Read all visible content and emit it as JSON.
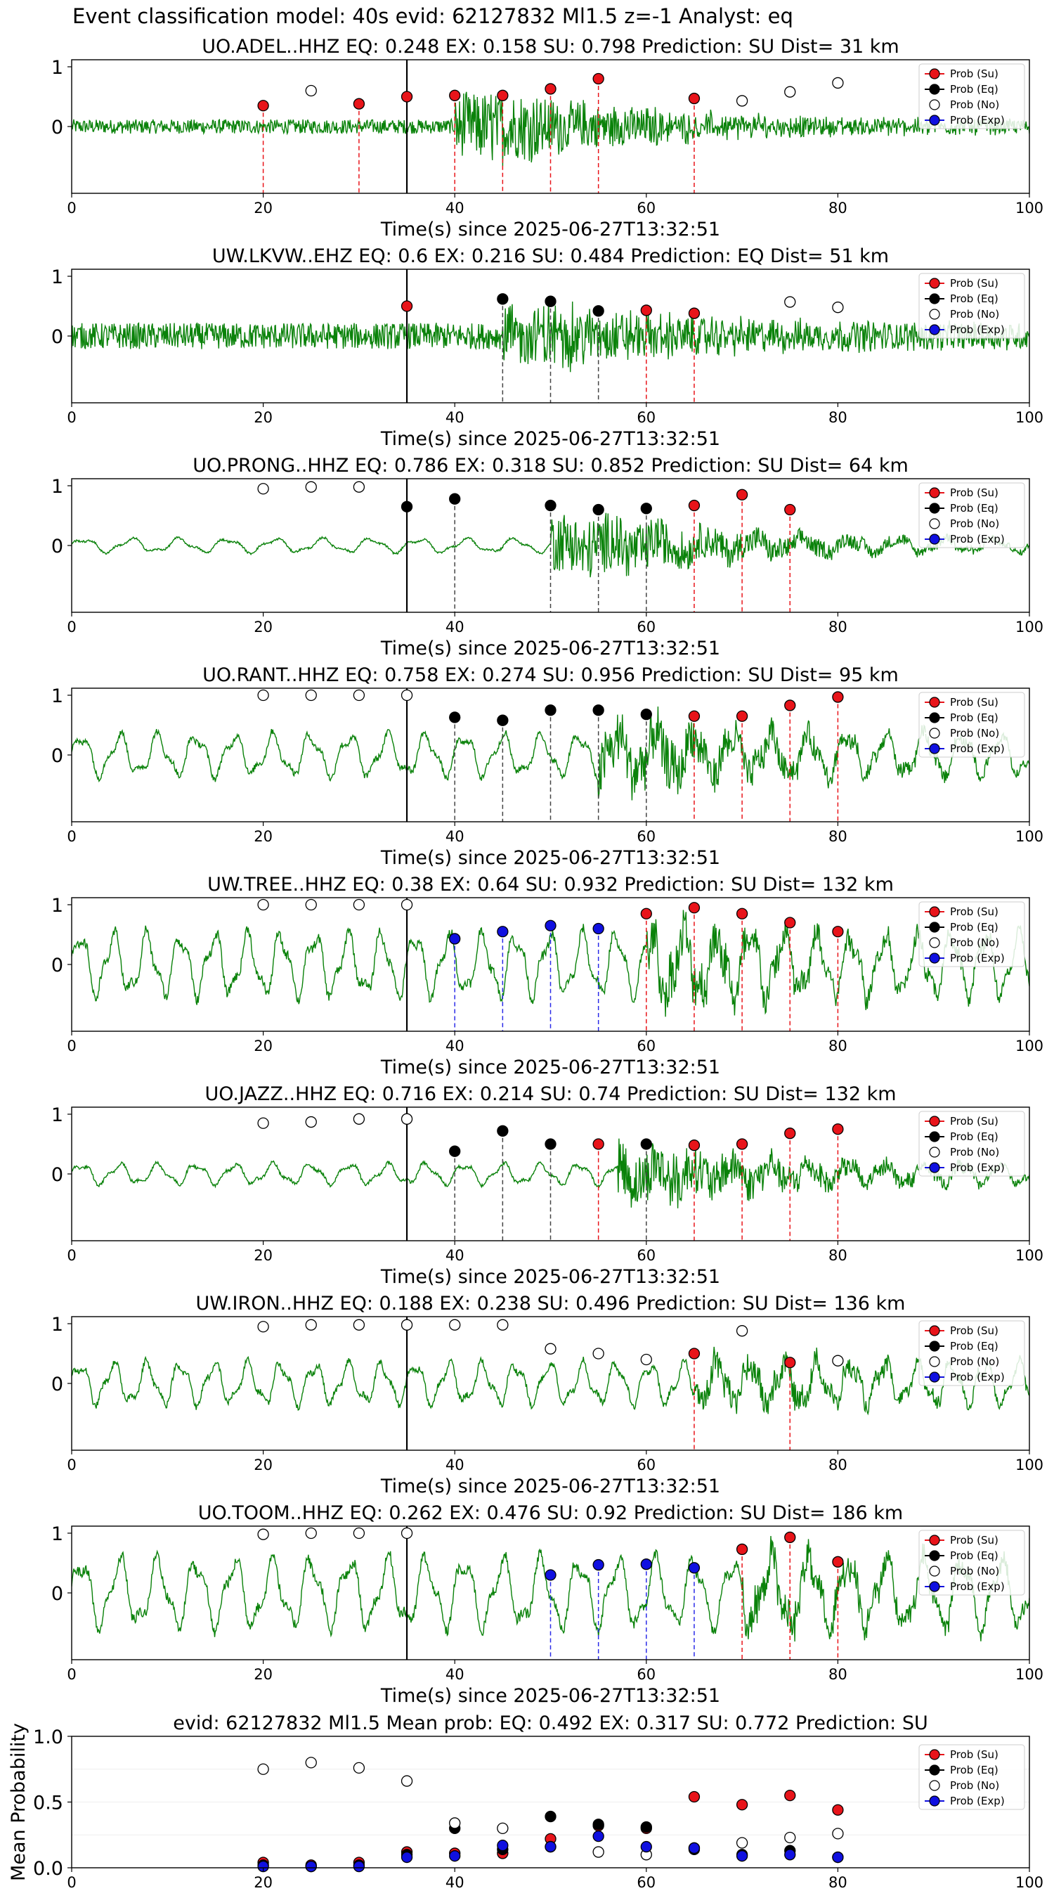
{
  "suptitle": "Event classification model: 40s evid: 62127832 Ml1.5 z=-1 Analyst: eq",
  "legend": [
    "Prob (Su)",
    "Prob (Eq)",
    "Prob (No)",
    "Prob (Exp)"
  ],
  "colors": {
    "su": "#e8141a",
    "eq": "#000000",
    "no": "#ffffff",
    "exp": "#1010e0",
    "trace": "#0a820a",
    "su_line": "#e8141a",
    "eq_line": "#444444",
    "exp_line": "#2a2ae8"
  },
  "chart_data": [
    {
      "type": "line",
      "title": "UO.ADEL..HHZ   EQ: 0.248  EX: 0.158  SU: 0.798   Prediction: SU    Dist= 31 km",
      "xlabel": "Time(s) since 2025-06-27T13:32:51",
      "xlim": [
        0,
        100
      ],
      "xticks": [
        0,
        20,
        40,
        60,
        80,
        100
      ],
      "yticks": [
        "0",
        "1"
      ],
      "trace": {
        "style": "noise",
        "amp": 0.12,
        "period": 0,
        "event_start": 40,
        "event_amp": 0.55
      },
      "points": [
        {
          "x": 20,
          "y": 0.35,
          "c": "su"
        },
        {
          "x": 25,
          "y": 0.6,
          "c": "no"
        },
        {
          "x": 30,
          "y": 0.38,
          "c": "su"
        },
        {
          "x": 35,
          "y": 0.5,
          "c": "su"
        },
        {
          "x": 40,
          "y": 0.52,
          "c": "su"
        },
        {
          "x": 45,
          "y": 0.52,
          "c": "su"
        },
        {
          "x": 50,
          "y": 0.63,
          "c": "su"
        },
        {
          "x": 55,
          "y": 0.8,
          "c": "su"
        },
        {
          "x": 65,
          "y": 0.47,
          "c": "su"
        },
        {
          "x": 70,
          "y": 0.43,
          "c": "no"
        },
        {
          "x": 75,
          "y": 0.58,
          "c": "no"
        },
        {
          "x": 80,
          "y": 0.73,
          "c": "no"
        }
      ]
    },
    {
      "type": "line",
      "title": "UW.LKVW..EHZ   EQ: 0.6  EX: 0.216  SU: 0.484   Prediction: EQ    Dist= 51 km",
      "xlabel": "Time(s) since 2025-06-27T13:32:51",
      "xlim": [
        0,
        100
      ],
      "xticks": [
        0,
        20,
        40,
        60,
        80,
        100
      ],
      "yticks": [
        "0",
        "1"
      ],
      "trace": {
        "style": "noise",
        "amp": 0.22,
        "period": 0,
        "event_start": 45,
        "event_amp": 0.45
      },
      "points": [
        {
          "x": 35,
          "y": 0.5,
          "c": "su"
        },
        {
          "x": 45,
          "y": 0.62,
          "c": "eq"
        },
        {
          "x": 50,
          "y": 0.58,
          "c": "eq"
        },
        {
          "x": 55,
          "y": 0.42,
          "c": "eq"
        },
        {
          "x": 60,
          "y": 0.43,
          "c": "su"
        },
        {
          "x": 65,
          "y": 0.38,
          "c": "su"
        },
        {
          "x": 75,
          "y": 0.57,
          "c": "no"
        },
        {
          "x": 80,
          "y": 0.48,
          "c": "no"
        }
      ]
    },
    {
      "type": "line",
      "title": "UO.PRONG..HHZ   EQ: 0.786  EX: 0.318  SU: 0.852   Prediction: SU    Dist= 64 km",
      "xlabel": "Time(s) since 2025-06-27T13:32:51",
      "xlim": [
        0,
        100
      ],
      "xticks": [
        0,
        20,
        40,
        60,
        80,
        100
      ],
      "yticks": [
        "0",
        "1"
      ],
      "trace": {
        "style": "wave",
        "amp": 0.1,
        "period": 5,
        "event_start": 50,
        "event_amp": 0.5
      },
      "points": [
        {
          "x": 20,
          "y": 0.95,
          "c": "no"
        },
        {
          "x": 25,
          "y": 0.98,
          "c": "no"
        },
        {
          "x": 30,
          "y": 0.98,
          "c": "no"
        },
        {
          "x": 35,
          "y": 0.65,
          "c": "eq"
        },
        {
          "x": 40,
          "y": 0.78,
          "c": "eq"
        },
        {
          "x": 50,
          "y": 0.67,
          "c": "eq"
        },
        {
          "x": 55,
          "y": 0.6,
          "c": "eq"
        },
        {
          "x": 60,
          "y": 0.62,
          "c": "eq"
        },
        {
          "x": 65,
          "y": 0.67,
          "c": "su"
        },
        {
          "x": 70,
          "y": 0.85,
          "c": "su"
        },
        {
          "x": 75,
          "y": 0.6,
          "c": "su"
        }
      ]
    },
    {
      "type": "line",
      "title": "UO.RANT..HHZ   EQ: 0.758  EX: 0.274  SU: 0.956   Prediction: SU    Dist= 95 km",
      "xlabel": "Time(s) since 2025-06-27T13:32:51",
      "xlim": [
        0,
        100
      ],
      "xticks": [
        0,
        20,
        40,
        60,
        80,
        100
      ],
      "yticks": [
        "0",
        "1"
      ],
      "trace": {
        "style": "wave",
        "amp": 0.3,
        "period": 4,
        "event_start": 55,
        "event_amp": 0.45
      },
      "points": [
        {
          "x": 20,
          "y": 1.0,
          "c": "no"
        },
        {
          "x": 25,
          "y": 1.0,
          "c": "no"
        },
        {
          "x": 30,
          "y": 1.0,
          "c": "no"
        },
        {
          "x": 35,
          "y": 1.0,
          "c": "no"
        },
        {
          "x": 40,
          "y": 0.63,
          "c": "eq"
        },
        {
          "x": 45,
          "y": 0.58,
          "c": "eq"
        },
        {
          "x": 50,
          "y": 0.75,
          "c": "eq"
        },
        {
          "x": 55,
          "y": 0.75,
          "c": "eq"
        },
        {
          "x": 60,
          "y": 0.68,
          "c": "eq"
        },
        {
          "x": 65,
          "y": 0.65,
          "c": "su"
        },
        {
          "x": 70,
          "y": 0.65,
          "c": "su"
        },
        {
          "x": 75,
          "y": 0.83,
          "c": "su"
        },
        {
          "x": 80,
          "y": 0.97,
          "c": "su"
        }
      ]
    },
    {
      "type": "line",
      "title": "UW.TREE..HHZ   EQ: 0.38  EX: 0.64  SU: 0.932   Prediction: SU    Dist= 132 km",
      "xlabel": "Time(s) since 2025-06-27T13:32:51",
      "xlim": [
        0,
        100
      ],
      "xticks": [
        0,
        20,
        40,
        60,
        80,
        100
      ],
      "yticks": [
        "0",
        "1"
      ],
      "trace": {
        "style": "wave",
        "amp": 0.45,
        "period": 3.5,
        "event_start": 60,
        "event_amp": 0.4
      },
      "points": [
        {
          "x": 20,
          "y": 1.0,
          "c": "no"
        },
        {
          "x": 25,
          "y": 1.0,
          "c": "no"
        },
        {
          "x": 30,
          "y": 1.0,
          "c": "no"
        },
        {
          "x": 35,
          "y": 1.0,
          "c": "no"
        },
        {
          "x": 40,
          "y": 0.43,
          "c": "exp"
        },
        {
          "x": 45,
          "y": 0.55,
          "c": "exp"
        },
        {
          "x": 50,
          "y": 0.65,
          "c": "exp"
        },
        {
          "x": 55,
          "y": 0.6,
          "c": "exp"
        },
        {
          "x": 60,
          "y": 0.85,
          "c": "su"
        },
        {
          "x": 65,
          "y": 0.95,
          "c": "su"
        },
        {
          "x": 70,
          "y": 0.85,
          "c": "su"
        },
        {
          "x": 75,
          "y": 0.7,
          "c": "su"
        },
        {
          "x": 80,
          "y": 0.55,
          "c": "su"
        }
      ]
    },
    {
      "type": "line",
      "title": "UO.JAZZ..HHZ   EQ: 0.716  EX: 0.214  SU: 0.74   Prediction: SU    Dist= 132 km",
      "xlabel": "Time(s) since 2025-06-27T13:32:51",
      "xlim": [
        0,
        100
      ],
      "xticks": [
        0,
        20,
        40,
        60,
        80,
        100
      ],
      "yticks": [
        "0",
        "1"
      ],
      "trace": {
        "style": "wave",
        "amp": 0.15,
        "period": 4,
        "event_start": 57,
        "event_amp": 0.45
      },
      "points": [
        {
          "x": 20,
          "y": 0.85,
          "c": "no"
        },
        {
          "x": 25,
          "y": 0.87,
          "c": "no"
        },
        {
          "x": 30,
          "y": 0.92,
          "c": "no"
        },
        {
          "x": 35,
          "y": 0.92,
          "c": "no"
        },
        {
          "x": 40,
          "y": 0.38,
          "c": "eq"
        },
        {
          "x": 45,
          "y": 0.72,
          "c": "eq"
        },
        {
          "x": 50,
          "y": 0.5,
          "c": "eq"
        },
        {
          "x": 55,
          "y": 0.5,
          "c": "su"
        },
        {
          "x": 60,
          "y": 0.5,
          "c": "eq"
        },
        {
          "x": 65,
          "y": 0.48,
          "c": "su"
        },
        {
          "x": 70,
          "y": 0.5,
          "c": "su"
        },
        {
          "x": 75,
          "y": 0.68,
          "c": "su"
        },
        {
          "x": 80,
          "y": 0.75,
          "c": "su"
        }
      ]
    },
    {
      "type": "line",
      "title": "UW.IRON..HHZ   EQ: 0.188  EX: 0.238  SU: 0.496   Prediction: SU    Dist= 136 km",
      "xlabel": "Time(s) since 2025-06-27T13:32:51",
      "xlim": [
        0,
        100
      ],
      "xticks": [
        0,
        20,
        40,
        60,
        80,
        100
      ],
      "yticks": [
        "0",
        "1"
      ],
      "trace": {
        "style": "wave",
        "amp": 0.3,
        "period": 3.5,
        "event_start": 65,
        "event_amp": 0.25
      },
      "points": [
        {
          "x": 20,
          "y": 0.95,
          "c": "no"
        },
        {
          "x": 25,
          "y": 0.98,
          "c": "no"
        },
        {
          "x": 30,
          "y": 0.98,
          "c": "no"
        },
        {
          "x": 35,
          "y": 0.98,
          "c": "no"
        },
        {
          "x": 40,
          "y": 0.98,
          "c": "no"
        },
        {
          "x": 45,
          "y": 0.98,
          "c": "no"
        },
        {
          "x": 50,
          "y": 0.58,
          "c": "no"
        },
        {
          "x": 55,
          "y": 0.5,
          "c": "no"
        },
        {
          "x": 60,
          "y": 0.4,
          "c": "no"
        },
        {
          "x": 65,
          "y": 0.5,
          "c": "su"
        },
        {
          "x": 70,
          "y": 0.88,
          "c": "no"
        },
        {
          "x": 75,
          "y": 0.35,
          "c": "su"
        },
        {
          "x": 80,
          "y": 0.38,
          "c": "no"
        }
      ]
    },
    {
      "type": "line",
      "title": "UO.TOOM..HHZ   EQ: 0.262  EX: 0.476  SU: 0.92   Prediction: SU    Dist= 186 km",
      "xlabel": "Time(s) since 2025-06-27T13:32:51",
      "xlim": [
        0,
        100
      ],
      "xticks": [
        0,
        20,
        40,
        60,
        80,
        100
      ],
      "yticks": [
        "0",
        "1"
      ],
      "trace": {
        "style": "wave",
        "amp": 0.5,
        "period": 4,
        "event_start": 70,
        "event_amp": 0.3
      },
      "points": [
        {
          "x": 20,
          "y": 0.98,
          "c": "no"
        },
        {
          "x": 25,
          "y": 1.0,
          "c": "no"
        },
        {
          "x": 30,
          "y": 1.0,
          "c": "no"
        },
        {
          "x": 35,
          "y": 1.0,
          "c": "no"
        },
        {
          "x": 50,
          "y": 0.3,
          "c": "exp"
        },
        {
          "x": 55,
          "y": 0.47,
          "c": "exp"
        },
        {
          "x": 60,
          "y": 0.48,
          "c": "exp"
        },
        {
          "x": 65,
          "y": 0.42,
          "c": "exp"
        },
        {
          "x": 70,
          "y": 0.73,
          "c": "su"
        },
        {
          "x": 75,
          "y": 0.93,
          "c": "su"
        },
        {
          "x": 80,
          "y": 0.52,
          "c": "su"
        }
      ]
    },
    {
      "type": "scatter",
      "title": "evid: 62127832   Ml1.5    Mean prob:    EQ: 0.492  EX: 0.317  SU: 0.772    Prediction: SU",
      "ylabel": "Mean Probability",
      "xlim": [
        0,
        100
      ],
      "ylim": [
        0,
        1
      ],
      "xticks": [
        0,
        20,
        40,
        60,
        80,
        100
      ],
      "yticks": [
        "0.0",
        "0.5",
        "1.0"
      ],
      "series": [
        {
          "name": "Prob (Su)",
          "c": "su",
          "x": [
            20,
            25,
            30,
            35,
            40,
            45,
            50,
            55,
            60,
            65,
            70,
            75,
            80
          ],
          "y": [
            0.04,
            0.02,
            0.04,
            0.12,
            0.11,
            0.11,
            0.22,
            0.32,
            0.3,
            0.54,
            0.48,
            0.55,
            0.44
          ]
        },
        {
          "name": "Prob (Eq)",
          "c": "eq",
          "x": [
            20,
            25,
            30,
            35,
            40,
            45,
            50,
            55,
            60,
            65,
            70,
            75,
            80
          ],
          "y": [
            0.02,
            0.01,
            0.02,
            0.1,
            0.3,
            0.14,
            0.39,
            0.33,
            0.31,
            0.14,
            0.1,
            0.13,
            0.08
          ]
        },
        {
          "name": "Prob (No)",
          "c": "no",
          "x": [
            20,
            25,
            30,
            35,
            40,
            45,
            50,
            55,
            60,
            65,
            70,
            75,
            80
          ],
          "y": [
            0.75,
            0.8,
            0.76,
            0.66,
            0.34,
            0.3,
            0.16,
            0.12,
            0.1,
            0.15,
            0.19,
            0.23,
            0.26
          ]
        },
        {
          "name": "Prob (Exp)",
          "c": "exp",
          "x": [
            20,
            25,
            30,
            35,
            40,
            45,
            50,
            55,
            60,
            65,
            70,
            75,
            80
          ],
          "y": [
            0.01,
            0.01,
            0.01,
            0.08,
            0.09,
            0.17,
            0.16,
            0.24,
            0.16,
            0.15,
            0.09,
            0.1,
            0.08
          ]
        }
      ]
    }
  ]
}
